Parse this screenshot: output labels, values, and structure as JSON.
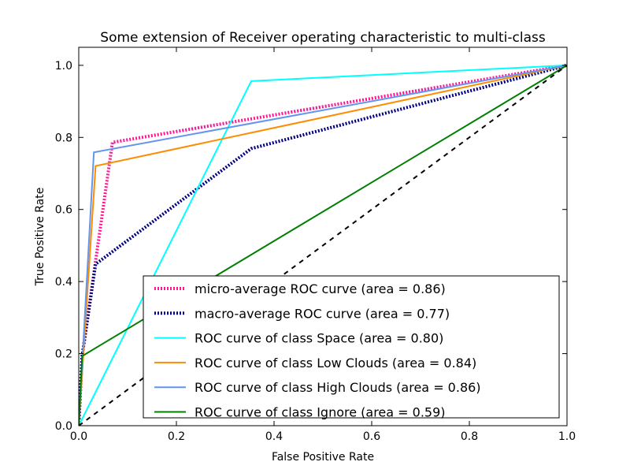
{
  "chart_data": {
    "type": "line",
    "title": "Some extension of Receiver operating characteristic to multi-class",
    "xlabel": "False Positive Rate",
    "ylabel": "True Positive Rate",
    "xlim": [
      0.0,
      1.0
    ],
    "ylim": [
      0.0,
      1.05
    ],
    "xticks": [
      "0.0",
      "0.2",
      "0.4",
      "0.6",
      "0.8",
      "1.0"
    ],
    "yticks": [
      "0.0",
      "0.2",
      "0.4",
      "0.6",
      "0.8",
      "1.0"
    ],
    "legend_position": "lower-right",
    "grid": false,
    "series": [
      {
        "name": "micro-average ROC curve (area = 0.86)",
        "color": "#ff1493",
        "style": "dotted",
        "points": [
          [
            0.0,
            0.0
          ],
          [
            0.0069,
            0.1931
          ],
          [
            0.069,
            0.7862
          ],
          [
            1.0,
            1.0
          ]
        ]
      },
      {
        "name": "macro-average ROC curve (area = 0.77)",
        "color": "#000080",
        "style": "dotted",
        "points": [
          [
            0.0,
            0.0
          ],
          [
            0.0069,
            0.1931
          ],
          [
            0.0345,
            0.4483
          ],
          [
            0.3533,
            0.7689
          ],
          [
            1.0,
            1.0
          ]
        ]
      },
      {
        "name": "ROC curve of class Space (area = 0.80)",
        "color": "#00ffff",
        "style": "solid",
        "points": [
          [
            0.0,
            0.0
          ],
          [
            0.3533,
            0.9563
          ],
          [
            1.0,
            1.0
          ]
        ]
      },
      {
        "name": "ROC curve of class Low Clouds (area = 0.84)",
        "color": "#ff8c00",
        "style": "solid",
        "points": [
          [
            0.0,
            0.0
          ],
          [
            0.0345,
            0.7207
          ],
          [
            1.0,
            1.0
          ]
        ]
      },
      {
        "name": "ROC curve of class High Clouds (area = 0.86)",
        "color": "#6495ed",
        "style": "solid",
        "points": [
          [
            0.0,
            0.0
          ],
          [
            0.031,
            0.7586
          ],
          [
            1.0,
            1.0
          ]
        ]
      },
      {
        "name": "ROC curve of class Ignore (area = 0.59)",
        "color": "#008000",
        "style": "solid",
        "points": [
          [
            0.0,
            0.0
          ],
          [
            0.0069,
            0.1931
          ],
          [
            1.0,
            1.0
          ]
        ]
      }
    ],
    "reference_line": {
      "color": "#000000",
      "style": "dashed",
      "points": [
        [
          0.0,
          0.0
        ],
        [
          1.0,
          1.0
        ]
      ]
    }
  }
}
